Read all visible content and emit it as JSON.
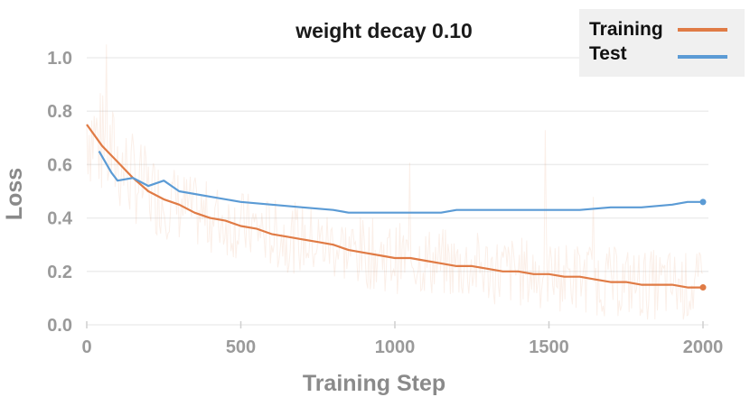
{
  "chart_data": {
    "type": "line",
    "title": "weight decay 0.10",
    "xlabel": "Training Step",
    "ylabel": "Loss",
    "xlim": [
      0,
      2000
    ],
    "ylim": [
      0,
      1.05
    ],
    "xticks": [
      0,
      500,
      1000,
      1500,
      2000
    ],
    "xtick_labels": [
      "0",
      "500",
      "1000",
      "1500",
      "2000"
    ],
    "yticks": [
      0.0,
      0.2,
      0.4,
      0.6,
      0.8,
      1.0
    ],
    "ytick_labels": [
      "0.0",
      "0.2",
      "0.4",
      "0.6",
      "0.8",
      "1.0"
    ],
    "grid": true,
    "legend_position": "top-right",
    "series": [
      {
        "name": "Training",
        "color": "#e07b45",
        "x": [
          0,
          25,
          50,
          75,
          100,
          150,
          200,
          250,
          300,
          350,
          400,
          450,
          500,
          550,
          600,
          650,
          700,
          750,
          800,
          850,
          900,
          950,
          1000,
          1050,
          1100,
          1150,
          1200,
          1250,
          1300,
          1350,
          1400,
          1450,
          1500,
          1550,
          1600,
          1650,
          1700,
          1750,
          1800,
          1850,
          1900,
          1950,
          2000
        ],
        "y": [
          0.75,
          0.71,
          0.67,
          0.64,
          0.61,
          0.55,
          0.5,
          0.47,
          0.45,
          0.42,
          0.4,
          0.39,
          0.37,
          0.36,
          0.34,
          0.33,
          0.32,
          0.31,
          0.3,
          0.28,
          0.27,
          0.26,
          0.25,
          0.25,
          0.24,
          0.23,
          0.22,
          0.22,
          0.21,
          0.2,
          0.2,
          0.19,
          0.19,
          0.18,
          0.18,
          0.17,
          0.16,
          0.16,
          0.15,
          0.15,
          0.15,
          0.14,
          0.14
        ]
      },
      {
        "name": "Test",
        "color": "#5b9bd5",
        "x": [
          40,
          80,
          100,
          150,
          200,
          250,
          300,
          400,
          500,
          600,
          700,
          800,
          850,
          900,
          1000,
          1100,
          1150,
          1200,
          1300,
          1400,
          1500,
          1600,
          1700,
          1800,
          1900,
          1950,
          2000
        ],
        "y": [
          0.65,
          0.57,
          0.54,
          0.55,
          0.52,
          0.54,
          0.5,
          0.48,
          0.46,
          0.45,
          0.44,
          0.43,
          0.42,
          0.42,
          0.42,
          0.42,
          0.42,
          0.43,
          0.43,
          0.43,
          0.43,
          0.43,
          0.44,
          0.44,
          0.45,
          0.46,
          0.46
        ]
      }
    ]
  }
}
